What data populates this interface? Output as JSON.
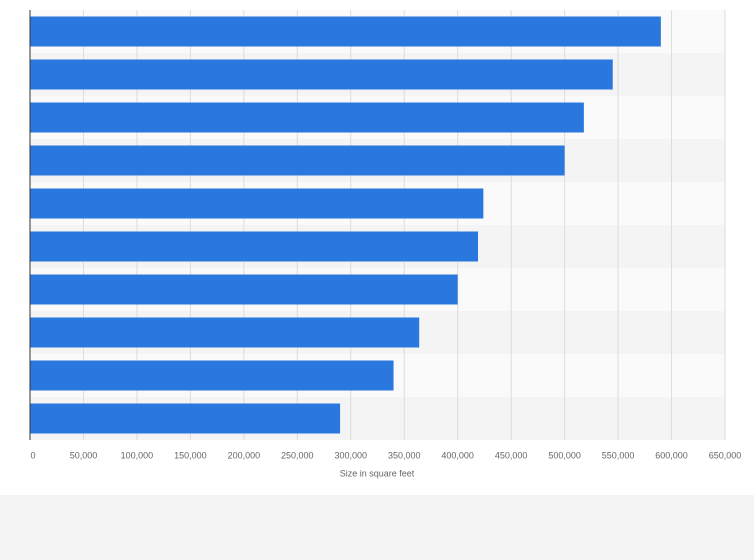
{
  "chart_data": {
    "type": "bar",
    "orientation": "horizontal",
    "x_label": "Size in square feet",
    "categories": [
      null,
      null,
      null,
      null,
      null,
      null,
      null,
      null,
      null,
      null
    ],
    "values": [
      590000,
      545000,
      518000,
      500000,
      424000,
      419000,
      400000,
      364000,
      340000,
      290000
    ],
    "color": "#2a77dd",
    "xlim": [
      0,
      650000
    ],
    "xticks": [
      0,
      {
        "value": 50000,
        "label": "50,000"
      },
      {
        "value": 100000,
        "label": "100,000"
      },
      {
        "value": 150000,
        "label": "150,000"
      },
      {
        "value": 200000,
        "label": "200,000"
      },
      {
        "value": 250000,
        "label": "250,000"
      },
      {
        "value": 300000,
        "label": "300,000"
      },
      {
        "value": 350000,
        "label": "350,000"
      },
      {
        "value": 400000,
        "label": "400,000"
      },
      {
        "value": 450000,
        "label": "450,000"
      },
      {
        "value": 500000,
        "label": "500,000"
      },
      {
        "value": 550000,
        "label": "550,000"
      },
      {
        "value": 600000,
        "label": "600,000"
      },
      {
        "value": 650000,
        "label": "650,000"
      }
    ],
    "grid": true
  }
}
